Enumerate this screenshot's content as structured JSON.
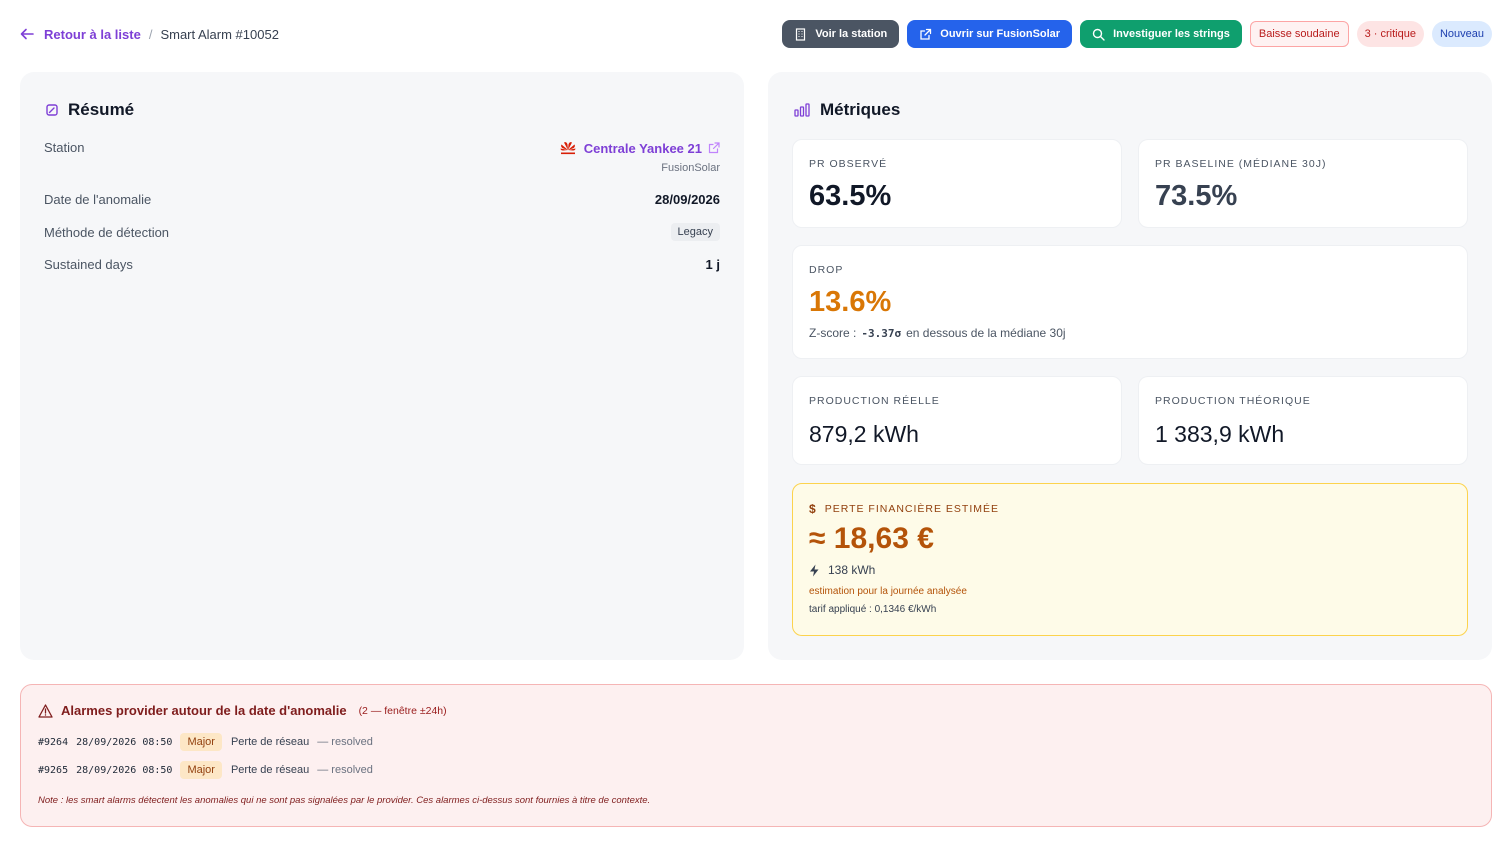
{
  "breadcrumb": {
    "back_label": "Retour à la liste",
    "separator": "/",
    "current": "Smart Alarm #10052"
  },
  "header": {
    "buttons": {
      "station": "Voir la station",
      "fusionsolar": "Ouvrir sur FusionSolar",
      "strings": "Investiguer les strings"
    },
    "tags": {
      "type": "Baisse soudaine",
      "severity": "3 · critique",
      "status": "Nouveau"
    }
  },
  "summary": {
    "title": "Résumé",
    "rows": {
      "station_label": "Station",
      "station_name": "Centrale Yankee 21",
      "station_provider": "FusionSolar",
      "date_label": "Date de l'anomalie",
      "date_value": "28/09/2026",
      "method_label": "Méthode de détection",
      "method_value": "Legacy",
      "sustained_label": "Sustained days",
      "sustained_value": "1 j"
    }
  },
  "metrics": {
    "title": "Métriques",
    "pr_observed": {
      "label": "PR observé",
      "value": "63.5%"
    },
    "pr_baseline": {
      "label": "PR baseline (médiane 30j)",
      "value": "73.5%"
    },
    "drop": {
      "label": "Drop",
      "value": "13.6%",
      "z_prefix": "Z-score :",
      "z_value": "-3.37σ",
      "z_suffix": "en dessous de la médiane 30j"
    },
    "prod_real": {
      "label": "Production réelle",
      "value": "879,2 kWh"
    },
    "prod_theory": {
      "label": "Production théorique",
      "value": "1 383,9 kWh"
    },
    "loss": {
      "currency_icon": "$",
      "label": "Perte financière estimée",
      "value": "≈ 18,63 €",
      "kwh": "138 kWh",
      "note": "estimation pour la journée analysée",
      "tariff": "tarif appliqué : 0,1346 €/kWh"
    }
  },
  "alarms": {
    "title": "Alarmes provider autour de la date d'anomalie",
    "count": "(2 — fenêtre ±24h)",
    "items": [
      {
        "id": "#9264",
        "ts": "28/09/2026 08:50",
        "severity": "Major",
        "desc": "Perte de réseau",
        "status": "— resolved"
      },
      {
        "id": "#9265",
        "ts": "28/09/2026 08:50",
        "severity": "Major",
        "desc": "Perte de réseau",
        "status": "— resolved"
      }
    ],
    "note": "Note : les smart alarms détectent les anomalies qui ne sont pas signalées par le provider. Ces alarmes ci-dessus sont fournies à titre de contexte."
  },
  "colors": {
    "accent": "#7e3fd6",
    "blue": "#2563eb",
    "green": "#0f9f6e",
    "amber": "#b45309",
    "drop": "#d97706"
  }
}
